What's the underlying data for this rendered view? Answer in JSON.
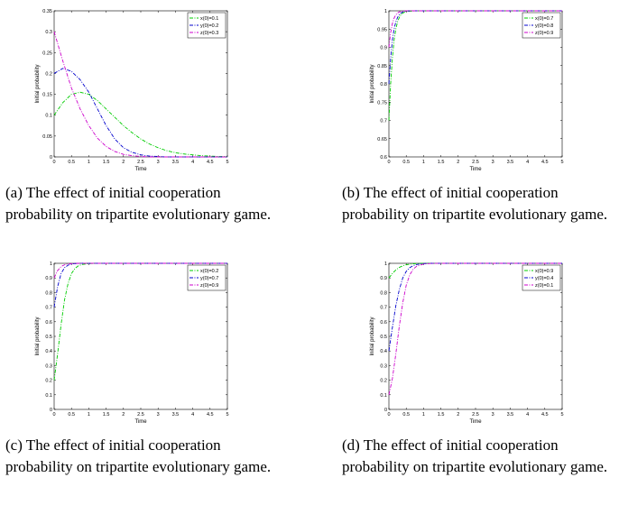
{
  "chart_data": [
    {
      "type": "line",
      "caption": "(a) The effect of initial cooperation probability on tripartite evolutionary game.",
      "xlabel": "Time",
      "ylabel": "Initial probability",
      "xlim": [
        0,
        5
      ],
      "ylim": [
        0,
        0.35
      ],
      "xticks": [
        "0",
        "0.5",
        "1",
        "1.5",
        "2",
        "2.5",
        "3",
        "3.5",
        "4",
        "4.5",
        "5"
      ],
      "yticks": [
        "0",
        "0.05",
        "0.1",
        "0.15",
        "0.2",
        "0.25",
        "0.3",
        "0.35"
      ],
      "legend_position": "top-right",
      "grid": false,
      "x": [
        0,
        0.25,
        0.5,
        0.75,
        1,
        1.25,
        1.5,
        1.75,
        2,
        2.25,
        2.5,
        2.75,
        3,
        3.25,
        3.5,
        3.75,
        4,
        4.25,
        4.5,
        4.75,
        5
      ],
      "series": [
        {
          "name": "x(0)=0.1",
          "color": "#00cc00",
          "values": [
            0.1,
            0.13,
            0.15,
            0.155,
            0.15,
            0.135,
            0.115,
            0.095,
            0.075,
            0.058,
            0.043,
            0.031,
            0.022,
            0.015,
            0.01,
            0.007,
            0.005,
            0.003,
            0.002,
            0.001,
            0.001
          ]
        },
        {
          "name": "y(0)=0.2",
          "color": "#0000cc",
          "values": [
            0.2,
            0.212,
            0.205,
            0.185,
            0.155,
            0.115,
            0.075,
            0.043,
            0.022,
            0.011,
            0.005,
            0.002,
            0.001,
            0,
            0,
            0,
            0,
            0,
            0,
            0,
            0
          ]
        },
        {
          "name": "z(0)=0.3",
          "color": "#cc00cc",
          "values": [
            0.3,
            0.23,
            0.165,
            0.115,
            0.075,
            0.045,
            0.025,
            0.013,
            0.006,
            0.003,
            0.001,
            0,
            0,
            0,
            0,
            0,
            0,
            0,
            0,
            0,
            0
          ]
        }
      ]
    },
    {
      "type": "line",
      "caption": "(b) The effect of initial cooperation probability on tripartite evolutionary game.",
      "xlabel": "Time",
      "ylabel": "Initial probability",
      "xlim": [
        0,
        5
      ],
      "ylim": [
        0.6,
        1
      ],
      "xticks": [
        "0",
        "0.5",
        "1",
        "1.5",
        "2",
        "2.5",
        "3",
        "3.5",
        "4",
        "4.5",
        "5"
      ],
      "yticks": [
        "0.6",
        "0.65",
        "0.7",
        "0.75",
        "0.8",
        "0.85",
        "0.9",
        "0.95",
        "1"
      ],
      "legend_position": "top-right",
      "grid": false,
      "x": [
        0,
        0.05,
        0.1,
        0.15,
        0.2,
        0.25,
        0.3,
        0.35,
        0.4,
        0.5,
        0.6,
        0.8,
        1,
        2,
        3,
        4,
        5
      ],
      "series": [
        {
          "name": "x(0)=0.7",
          "color": "#00cc00",
          "values": [
            0.7,
            0.8,
            0.87,
            0.92,
            0.95,
            0.97,
            0.982,
            0.99,
            0.994,
            0.998,
            0.999,
            1,
            1,
            1,
            1,
            1,
            1
          ]
        },
        {
          "name": "y(0)=0.8",
          "color": "#0000cc",
          "values": [
            0.8,
            0.87,
            0.92,
            0.95,
            0.97,
            0.982,
            0.99,
            0.994,
            0.997,
            0.999,
            1,
            1,
            1,
            1,
            1,
            1,
            1
          ]
        },
        {
          "name": "z(0)=0.9",
          "color": "#cc00cc",
          "values": [
            0.9,
            0.94,
            0.965,
            0.98,
            0.989,
            0.994,
            0.997,
            0.998,
            0.999,
            1,
            1,
            1,
            1,
            1,
            1,
            1,
            1
          ]
        }
      ]
    },
    {
      "type": "line",
      "caption": "(c) The effect of initial cooperation probability on tripartite evolutionary game.",
      "xlabel": "Time",
      "ylabel": "Initial probability",
      "xlim": [
        0,
        5
      ],
      "ylim": [
        0,
        1
      ],
      "xticks": [
        "0",
        "0.5",
        "1",
        "1.5",
        "2",
        "2.5",
        "3",
        "3.5",
        "4",
        "4.5",
        "5"
      ],
      "yticks": [
        "0",
        "0.1",
        "0.2",
        "0.3",
        "0.4",
        "0.5",
        "0.6",
        "0.7",
        "0.8",
        "0.9",
        "1"
      ],
      "legend_position": "top-right",
      "grid": false,
      "x": [
        0,
        0.1,
        0.2,
        0.3,
        0.4,
        0.5,
        0.6,
        0.7,
        0.8,
        1,
        1.2,
        1.5,
        2,
        3,
        4,
        5
      ],
      "series": [
        {
          "name": "x(0)=0.2",
          "color": "#00cc00",
          "values": [
            0.2,
            0.38,
            0.58,
            0.75,
            0.86,
            0.93,
            0.965,
            0.983,
            0.992,
            0.998,
            1,
            1,
            1,
            1,
            1,
            1
          ]
        },
        {
          "name": "y(0)=0.7",
          "color": "#0000cc",
          "values": [
            0.7,
            0.84,
            0.93,
            0.97,
            0.987,
            0.995,
            0.998,
            0.999,
            1,
            1,
            1,
            1,
            1,
            1,
            1,
            1
          ]
        },
        {
          "name": "z(0)=0.9",
          "color": "#cc00cc",
          "values": [
            0.9,
            0.95,
            0.978,
            0.99,
            0.996,
            0.998,
            0.999,
            1,
            1,
            1,
            1,
            1,
            1,
            1,
            1,
            1
          ]
        }
      ]
    },
    {
      "type": "line",
      "caption": "(d) The effect of initial cooperation probability on tripartite evolutionary game.",
      "xlabel": "Time",
      "ylabel": "Initial probability",
      "xlim": [
        0,
        5
      ],
      "ylim": [
        0,
        1
      ],
      "xticks": [
        "0",
        "0.5",
        "1",
        "1.5",
        "2",
        "2.5",
        "3",
        "3.5",
        "4",
        "4.5",
        "5"
      ],
      "yticks": [
        "0",
        "0.1",
        "0.2",
        "0.3",
        "0.4",
        "0.5",
        "0.6",
        "0.7",
        "0.8",
        "0.9",
        "1"
      ],
      "legend_position": "top-right",
      "grid": false,
      "x": [
        0,
        0.1,
        0.2,
        0.3,
        0.4,
        0.5,
        0.6,
        0.7,
        0.8,
        1,
        1.2,
        1.5,
        2,
        3,
        4,
        5
      ],
      "series": [
        {
          "name": "x(0)=0.9",
          "color": "#00cc00",
          "values": [
            0.9,
            0.93,
            0.955,
            0.972,
            0.983,
            0.99,
            0.994,
            0.997,
            0.998,
            1,
            1,
            1,
            1,
            1,
            1,
            1
          ]
        },
        {
          "name": "y(0)=0.4",
          "color": "#0000cc",
          "values": [
            0.4,
            0.56,
            0.71,
            0.82,
            0.9,
            0.945,
            0.97,
            0.984,
            0.992,
            0.998,
            1,
            1,
            1,
            1,
            1,
            1
          ]
        },
        {
          "name": "z(0)=0.1",
          "color": "#cc00cc",
          "values": [
            0.1,
            0.21,
            0.38,
            0.57,
            0.73,
            0.85,
            0.92,
            0.96,
            0.98,
            0.995,
            0.999,
            1,
            1,
            1,
            1,
            1
          ]
        }
      ]
    }
  ]
}
